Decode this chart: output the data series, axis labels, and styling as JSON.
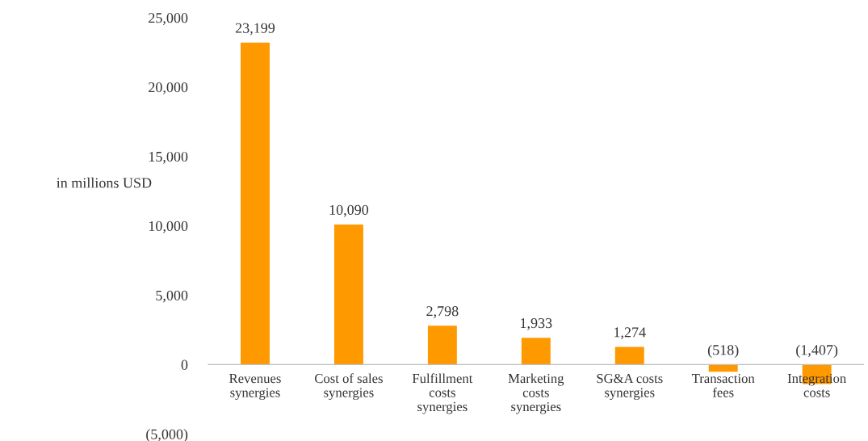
{
  "chart_data": {
    "type": "bar",
    "ylabel": "in millions USD",
    "categories": [
      "Revenues\nsynergies",
      "Cost of sales\nsynergies",
      "Fulfillment\ncosts\nsynergies",
      "Marketing\ncosts\nsynergies",
      "SG&A costs\nsynergies",
      "Transaction\nfees",
      "Integration\ncosts"
    ],
    "series": [
      {
        "color": "#ff9900",
        "values": [
          23199,
          10090,
          2798,
          1933,
          1274,
          -518,
          -1407
        ],
        "value_labels": [
          "23,199",
          "10,090",
          "2,798",
          "1,933",
          "1,274",
          "(518)",
          "(1,407)"
        ]
      }
    ],
    "ylim": [
      -5000,
      25000
    ],
    "yticks": [
      {
        "value": -5000,
        "label": "(5,000)"
      },
      0,
      {
        "value": 5000,
        "label": "5,000"
      },
      {
        "value": 10000,
        "label": "10,000"
      },
      {
        "value": 15000,
        "label": "15,000"
      },
      {
        "value": 20000,
        "label": "20,000"
      },
      {
        "value": 25000,
        "label": "25,000"
      }
    ],
    "grid": false,
    "legend": false
  }
}
